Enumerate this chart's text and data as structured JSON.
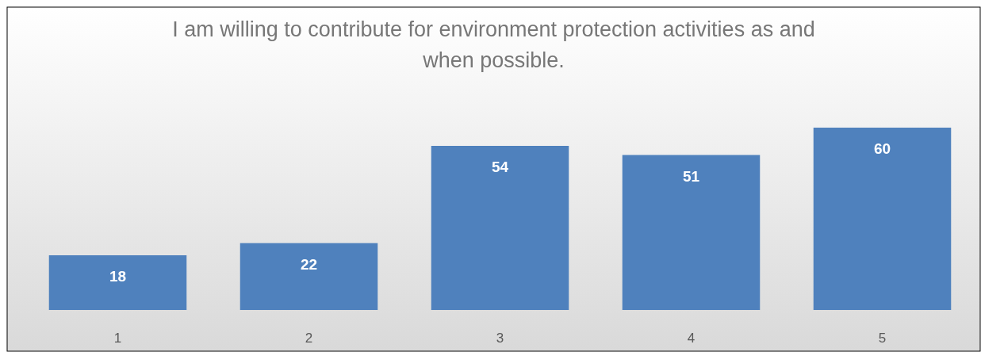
{
  "chart_data": {
    "type": "bar",
    "title": "I am willing to contribute for environment protection activities as and when possible.",
    "categories": [
      "1",
      "2",
      "3",
      "4",
      "5"
    ],
    "values": [
      18,
      22,
      54,
      51,
      60
    ],
    "color": "#4f81bd",
    "data_labels": true
  }
}
